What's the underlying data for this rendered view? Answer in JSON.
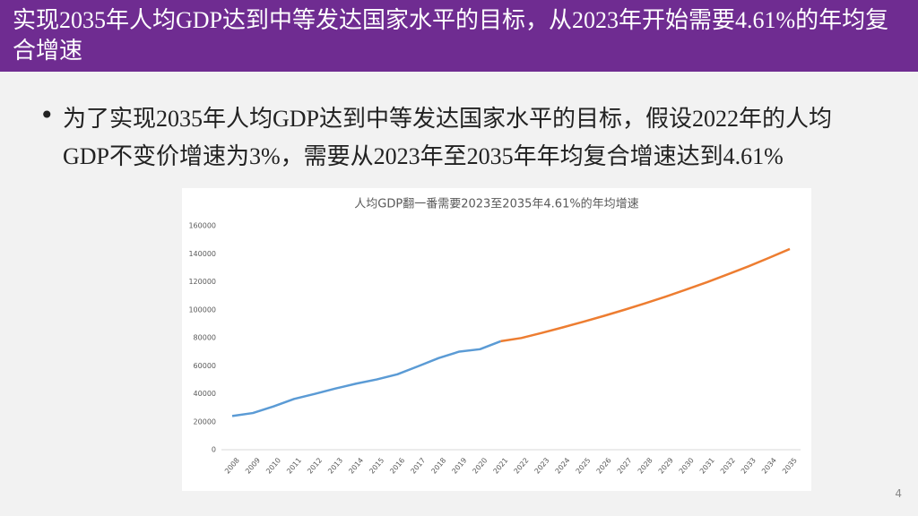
{
  "slide": {
    "title": "实现2035年人均GDP达到中等发达国家水平的目标，从2023年开始需要4.61%的年均复合增速",
    "bullet": "为了实现2035年人均GDP达到中等发达国家水平的目标，假设2022年的人均GDP不变价增速为3%，需要从2023年至2035年年均复合增速达到4.61%",
    "page_number": "4"
  },
  "chart_data": {
    "type": "line",
    "title": "人均GDP翻一番需要2023至2035年4.61%的年均增速",
    "categories": [
      "2008",
      "2009",
      "2010",
      "2011",
      "2012",
      "2013",
      "2014",
      "2015",
      "2016",
      "2017",
      "2018",
      "2019",
      "2020",
      "2021",
      "2022",
      "2023",
      "2024",
      "2025",
      "2026",
      "2027",
      "2028",
      "2029",
      "2030",
      "2031",
      "2032",
      "2033",
      "2034",
      "2035"
    ],
    "series": [
      {
        "color": "#5b9bd5",
        "values": [
          24100,
          26200,
          30900,
          36300,
          39900,
          43700,
          47200,
          50200,
          53900,
          59600,
          65500,
          70100,
          71800,
          77500,
          null,
          null,
          null,
          null,
          null,
          null,
          null,
          null,
          null,
          null,
          null,
          null,
          null,
          null
        ]
      },
      {
        "color": "#ed7d31",
        "values": [
          null,
          null,
          null,
          null,
          null,
          null,
          null,
          null,
          null,
          null,
          null,
          null,
          null,
          77500,
          79800,
          83500,
          87350,
          91400,
          95600,
          100000,
          104600,
          109400,
          114500,
          119700,
          125300,
          131000,
          137100,
          143400
        ]
      }
    ],
    "ylim": [
      0,
      160000
    ],
    "yticks": [
      0,
      20000,
      40000,
      60000,
      80000,
      100000,
      120000,
      140000,
      160000
    ]
  }
}
